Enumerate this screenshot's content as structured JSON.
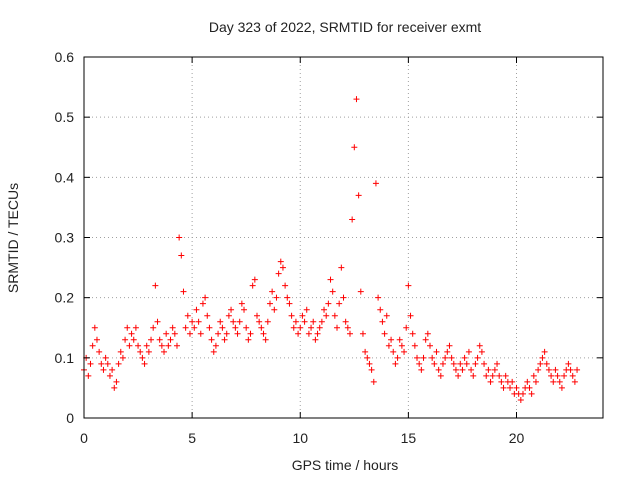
{
  "chart_data": {
    "type": "scatter",
    "title": "Day 323 of 2022, SRMTID for receiver exmt",
    "xlabel": "GPS time / hours",
    "ylabel": "SRMTID / TECUs",
    "xlim": [
      0,
      24
    ],
    "ylim": [
      0,
      0.6
    ],
    "xticks": [
      0,
      5,
      10,
      15,
      20
    ],
    "yticks": [
      0,
      0.1,
      0.2,
      0.3,
      0.4,
      0.5,
      0.6
    ],
    "xtick_labels": [
      "0",
      "5",
      "10",
      "15",
      "20"
    ],
    "ytick_labels": [
      "0",
      "0.1",
      "0.2",
      "0.3",
      "0.4",
      "0.5",
      "0.6"
    ],
    "grid": true,
    "marker": "+",
    "color": "#ff0000",
    "series": [
      {
        "name": "SRMTID",
        "x": [
          0.0,
          0.1,
          0.2,
          0.3,
          0.4,
          0.5,
          0.6,
          0.7,
          0.8,
          0.9,
          1.0,
          1.1,
          1.2,
          1.3,
          1.4,
          1.5,
          1.6,
          1.7,
          1.8,
          1.9,
          2.0,
          2.1,
          2.2,
          2.3,
          2.4,
          2.5,
          2.6,
          2.7,
          2.8,
          2.9,
          3.0,
          3.1,
          3.2,
          3.3,
          3.4,
          3.5,
          3.6,
          3.7,
          3.8,
          3.9,
          4.0,
          4.1,
          4.2,
          4.3,
          4.4,
          4.5,
          4.6,
          4.7,
          4.8,
          4.9,
          5.0,
          5.1,
          5.2,
          5.3,
          5.4,
          5.5,
          5.6,
          5.7,
          5.8,
          5.9,
          6.0,
          6.1,
          6.2,
          6.3,
          6.4,
          6.5,
          6.6,
          6.7,
          6.8,
          6.9,
          7.0,
          7.1,
          7.2,
          7.3,
          7.4,
          7.5,
          7.6,
          7.7,
          7.8,
          7.9,
          8.0,
          8.1,
          8.2,
          8.3,
          8.4,
          8.5,
          8.6,
          8.7,
          8.8,
          8.9,
          9.0,
          9.1,
          9.2,
          9.3,
          9.4,
          9.5,
          9.6,
          9.7,
          9.8,
          9.9,
          10.0,
          10.1,
          10.2,
          10.3,
          10.4,
          10.5,
          10.6,
          10.7,
          10.8,
          10.9,
          11.0,
          11.1,
          11.2,
          11.3,
          11.4,
          11.5,
          11.6,
          11.7,
          11.8,
          11.9,
          12.0,
          12.1,
          12.2,
          12.3,
          12.4,
          12.5,
          12.6,
          12.7,
          12.8,
          12.9,
          13.0,
          13.1,
          13.2,
          13.3,
          13.4,
          13.5,
          13.6,
          13.7,
          13.8,
          13.9,
          14.0,
          14.1,
          14.2,
          14.3,
          14.4,
          14.5,
          14.6,
          14.7,
          14.8,
          14.9,
          15.0,
          15.1,
          15.2,
          15.3,
          15.4,
          15.5,
          15.6,
          15.7,
          15.8,
          15.9,
          16.0,
          16.1,
          16.2,
          16.3,
          16.4,
          16.5,
          16.6,
          16.7,
          16.8,
          16.9,
          17.0,
          17.1,
          17.2,
          17.3,
          17.4,
          17.5,
          17.6,
          17.7,
          17.8,
          17.9,
          18.0,
          18.1,
          18.2,
          18.3,
          18.4,
          18.5,
          18.6,
          18.7,
          18.8,
          18.9,
          19.0,
          19.1,
          19.2,
          19.3,
          19.4,
          19.5,
          19.6,
          19.7,
          19.8,
          19.9,
          20.0,
          20.1,
          20.2,
          20.3,
          20.4,
          20.5,
          20.6,
          20.7,
          20.8,
          20.9,
          21.0,
          21.1,
          21.2,
          21.3,
          21.4,
          21.5,
          21.6,
          21.7,
          21.8,
          21.9,
          22.0,
          22.1,
          22.2,
          22.3,
          22.4,
          22.5,
          22.6,
          22.7,
          22.8
        ],
        "y": [
          0.08,
          0.1,
          0.07,
          0.09,
          0.12,
          0.15,
          0.13,
          0.11,
          0.09,
          0.08,
          0.1,
          0.09,
          0.07,
          0.08,
          0.05,
          0.06,
          0.09,
          0.11,
          0.1,
          0.13,
          0.15,
          0.12,
          0.14,
          0.13,
          0.15,
          0.12,
          0.11,
          0.1,
          0.09,
          0.12,
          0.11,
          0.13,
          0.15,
          0.22,
          0.16,
          0.13,
          0.12,
          0.11,
          0.14,
          0.12,
          0.13,
          0.15,
          0.14,
          0.12,
          0.3,
          0.27,
          0.21,
          0.15,
          0.17,
          0.14,
          0.16,
          0.15,
          0.18,
          0.16,
          0.14,
          0.19,
          0.2,
          0.17,
          0.15,
          0.13,
          0.11,
          0.12,
          0.14,
          0.16,
          0.15,
          0.13,
          0.14,
          0.17,
          0.18,
          0.16,
          0.15,
          0.14,
          0.16,
          0.19,
          0.18,
          0.15,
          0.13,
          0.14,
          0.22,
          0.23,
          0.17,
          0.16,
          0.15,
          0.14,
          0.13,
          0.16,
          0.19,
          0.21,
          0.18,
          0.2,
          0.24,
          0.26,
          0.25,
          0.22,
          0.2,
          0.19,
          0.17,
          0.15,
          0.16,
          0.14,
          0.15,
          0.17,
          0.16,
          0.18,
          0.14,
          0.15,
          0.16,
          0.13,
          0.14,
          0.15,
          0.16,
          0.18,
          0.17,
          0.19,
          0.23,
          0.21,
          0.17,
          0.15,
          0.19,
          0.25,
          0.2,
          0.16,
          0.15,
          0.14,
          0.33,
          0.45,
          0.53,
          0.37,
          0.21,
          0.14,
          0.11,
          0.1,
          0.09,
          0.08,
          0.06,
          0.39,
          0.2,
          0.18,
          0.16,
          0.14,
          0.17,
          0.12,
          0.13,
          0.11,
          0.09,
          0.1,
          0.13,
          0.12,
          0.11,
          0.15,
          0.22,
          0.17,
          0.14,
          0.12,
          0.1,
          0.09,
          0.08,
          0.1,
          0.13,
          0.14,
          0.12,
          0.1,
          0.09,
          0.11,
          0.08,
          0.07,
          0.09,
          0.1,
          0.11,
          0.12,
          0.1,
          0.09,
          0.08,
          0.07,
          0.09,
          0.08,
          0.1,
          0.09,
          0.11,
          0.08,
          0.07,
          0.09,
          0.1,
          0.12,
          0.11,
          0.09,
          0.07,
          0.08,
          0.06,
          0.07,
          0.08,
          0.09,
          0.07,
          0.06,
          0.05,
          0.07,
          0.06,
          0.05,
          0.06,
          0.04,
          0.05,
          0.04,
          0.03,
          0.04,
          0.05,
          0.06,
          0.05,
          0.04,
          0.07,
          0.06,
          0.08,
          0.09,
          0.1,
          0.11,
          0.09,
          0.08,
          0.07,
          0.06,
          0.08,
          0.07,
          0.06,
          0.05,
          0.07,
          0.08,
          0.09,
          0.08,
          0.07,
          0.06,
          0.08
        ]
      }
    ]
  }
}
